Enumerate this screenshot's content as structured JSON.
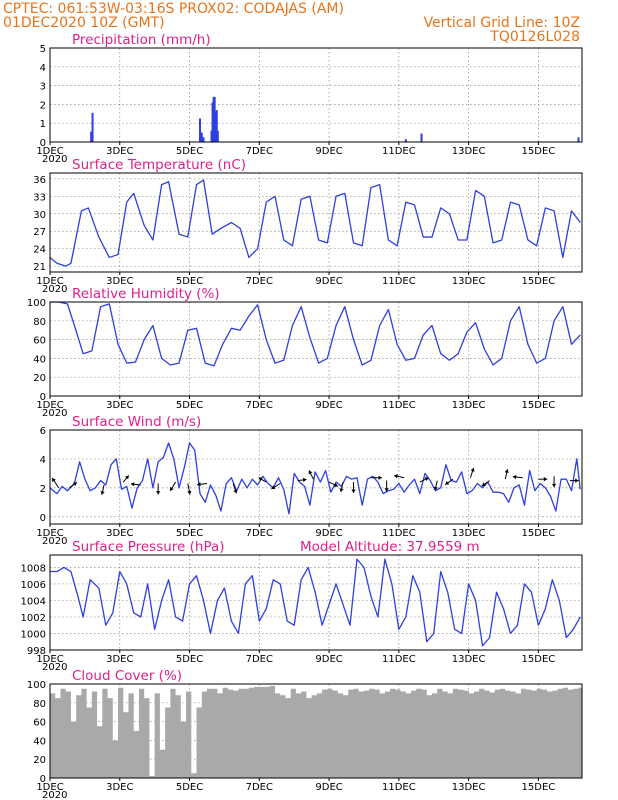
{
  "header": {
    "line1_left": "CPTEC:   061:53W-03:16S   PROX02: CODAJAS (AM)",
    "line2_left": "01DEC2020 10Z (GMT)",
    "line2_right": "Vertical Grid Line: 10Z",
    "line3_right": "TQ0126L028"
  },
  "colors": {
    "header": "#e8741a",
    "title": "#e0208a",
    "series": "#2f3fe0",
    "cloud": "#a9a9a9",
    "grid": "#888888"
  },
  "x_axis": {
    "ticks": [
      "1DEC",
      "3DEC",
      "5DEC",
      "7DEC",
      "9DEC",
      "11DEC",
      "13DEC",
      "15DEC"
    ],
    "tick_days": [
      0,
      2,
      4,
      6,
      8,
      10,
      12,
      14
    ],
    "year_label": "2020",
    "range_days": [
      0,
      15.25
    ]
  },
  "chart_data": [
    {
      "id": "precip",
      "type": "bar",
      "title": "Precipitation (mm/h)",
      "ylim": [
        0,
        5
      ],
      "yticks": [
        0,
        1,
        2,
        3,
        4,
        5
      ],
      "bars": [
        {
          "x": 1.18,
          "y": 0.55
        },
        {
          "x": 1.22,
          "y": 1.55
        },
        {
          "x": 4.3,
          "y": 1.25
        },
        {
          "x": 4.35,
          "y": 0.5
        },
        {
          "x": 4.4,
          "y": 0.25
        },
        {
          "x": 4.63,
          "y": 0.6
        },
        {
          "x": 4.66,
          "y": 2.1
        },
        {
          "x": 4.69,
          "y": 2.4
        },
        {
          "x": 4.72,
          "y": 2.4
        },
        {
          "x": 4.75,
          "y": 1.6
        },
        {
          "x": 4.78,
          "y": 1.7
        },
        {
          "x": 4.81,
          "y": 0.6
        },
        {
          "x": 10.2,
          "y": 0.15
        },
        {
          "x": 10.65,
          "y": 0.45
        },
        {
          "x": 15.15,
          "y": 0.25
        }
      ]
    },
    {
      "id": "temp",
      "type": "line",
      "title": "Surface Temperature (nC)",
      "ylim": [
        20,
        37
      ],
      "yticks": [
        21,
        24,
        27,
        30,
        33,
        36
      ],
      "x": [
        0,
        0.2,
        0.45,
        0.6,
        0.9,
        1.1,
        1.4,
        1.7,
        1.95,
        2.2,
        2.4,
        2.7,
        2.95,
        3.2,
        3.4,
        3.7,
        3.95,
        4.2,
        4.4,
        4.65,
        4.9,
        5.2,
        5.45,
        5.7,
        5.95,
        6.2,
        6.45,
        6.7,
        6.95,
        7.2,
        7.45,
        7.7,
        7.95,
        8.2,
        8.45,
        8.7,
        8.95,
        9.2,
        9.45,
        9.7,
        9.95,
        10.2,
        10.45,
        10.7,
        10.95,
        11.2,
        11.45,
        11.7,
        11.95,
        12.2,
        12.45,
        12.7,
        12.95,
        13.2,
        13.45,
        13.7,
        13.95,
        14.2,
        14.45,
        14.7,
        14.95,
        15.2
      ],
      "y": [
        22.5,
        21.5,
        21.0,
        21.5,
        30.5,
        31.0,
        26.0,
        22.5,
        23.0,
        32.0,
        33.5,
        28.0,
        25.5,
        35.0,
        35.5,
        26.5,
        26.0,
        35.0,
        35.8,
        26.5,
        27.5,
        28.5,
        27.5,
        22.5,
        24.0,
        32.0,
        33.0,
        25.5,
        24.5,
        32.5,
        33.0,
        25.5,
        25.0,
        33.0,
        33.5,
        25.0,
        24.5,
        34.5,
        35.0,
        25.5,
        24.5,
        32.0,
        31.5,
        26.0,
        26.0,
        31.0,
        30.0,
        25.5,
        25.5,
        34.0,
        33.0,
        25.0,
        25.5,
        32.0,
        31.5,
        25.5,
        24.5,
        31.0,
        30.5,
        22.5,
        30.5,
        28.5
      ]
    },
    {
      "id": "rh",
      "type": "line",
      "title": "Relative Humidity (%)",
      "ylim": [
        0,
        100
      ],
      "yticks": [
        0,
        20,
        40,
        60,
        80,
        100
      ],
      "x": [
        0,
        0.25,
        0.5,
        0.7,
        0.95,
        1.2,
        1.45,
        1.7,
        1.95,
        2.2,
        2.45,
        2.7,
        2.95,
        3.2,
        3.45,
        3.7,
        3.95,
        4.2,
        4.45,
        4.7,
        4.95,
        5.2,
        5.45,
        5.7,
        5.95,
        6.2,
        6.45,
        6.7,
        6.95,
        7.2,
        7.45,
        7.7,
        7.95,
        8.2,
        8.45,
        8.7,
        8.95,
        9.2,
        9.45,
        9.7,
        9.95,
        10.2,
        10.45,
        10.7,
        10.95,
        11.2,
        11.45,
        11.7,
        11.95,
        12.2,
        12.45,
        12.7,
        12.95,
        13.2,
        13.45,
        13.7,
        13.95,
        14.2,
        14.45,
        14.7,
        14.95,
        15.2
      ],
      "y": [
        100,
        100,
        98,
        75,
        45,
        48,
        95,
        98,
        55,
        35,
        36,
        60,
        75,
        40,
        33,
        35,
        70,
        72,
        35,
        32,
        55,
        72,
        70,
        85,
        97,
        60,
        35,
        38,
        75,
        95,
        62,
        35,
        40,
        75,
        95,
        60,
        33,
        38,
        75,
        92,
        55,
        38,
        40,
        65,
        75,
        45,
        38,
        45,
        68,
        78,
        50,
        33,
        40,
        80,
        95,
        55,
        35,
        40,
        80,
        95,
        55,
        65
      ]
    },
    {
      "id": "wind",
      "type": "line",
      "title": "Surface Wind (m/s)",
      "ylim": [
        -0.5,
        6
      ],
      "yticks": [
        0,
        2,
        4,
        6
      ],
      "x": [
        0,
        0.2,
        0.35,
        0.5,
        0.7,
        0.85,
        1.0,
        1.15,
        1.3,
        1.45,
        1.6,
        1.75,
        1.9,
        2.05,
        2.2,
        2.35,
        2.5,
        2.65,
        2.8,
        2.95,
        3.1,
        3.25,
        3.4,
        3.55,
        3.7,
        3.85,
        4.0,
        4.15,
        4.3,
        4.45,
        4.6,
        4.75,
        4.9,
        5.05,
        5.2,
        5.35,
        5.5,
        5.65,
        5.8,
        5.95,
        6.1,
        6.25,
        6.4,
        6.55,
        6.7,
        6.85,
        7.0,
        7.15,
        7.3,
        7.45,
        7.6,
        7.75,
        7.9,
        8.05,
        8.2,
        8.35,
        8.5,
        8.65,
        8.8,
        8.95,
        9.1,
        9.25,
        9.4,
        9.55,
        9.7,
        9.85,
        10.0,
        10.15,
        10.3,
        10.45,
        10.6,
        10.75,
        10.9,
        11.05,
        11.2,
        11.35,
        11.5,
        11.65,
        11.8,
        11.95,
        12.1,
        12.25,
        12.4,
        12.55,
        12.7,
        12.85,
        13.0,
        13.15,
        13.3,
        13.45,
        13.6,
        13.75,
        13.9,
        14.05,
        14.2,
        14.35,
        14.5,
        14.65,
        14.8,
        14.95,
        15.1,
        15.2
      ],
      "y": [
        2.0,
        1.6,
        2.1,
        1.8,
        2.3,
        3.8,
        2.6,
        1.8,
        2.0,
        2.5,
        2.2,
        3.6,
        4.0,
        1.9,
        2.1,
        0.6,
        2.0,
        2.5,
        4.0,
        2.0,
        3.8,
        4.1,
        5.1,
        4.0,
        2.0,
        3.4,
        5.1,
        4.6,
        1.6,
        1.0,
        2.2,
        1.5,
        0.4,
        2.3,
        2.7,
        1.8,
        2.6,
        2.0,
        2.6,
        2.2,
        2.8,
        2.3,
        2.0,
        2.7,
        1.9,
        0.2,
        3.0,
        2.4,
        2.1,
        0.8,
        3.1,
        2.4,
        3.2,
        1.7,
        2.4,
        2.1,
        2.8,
        2.6,
        2.7,
        0.8,
        2.6,
        2.8,
        2.4,
        1.6,
        1.8,
        1.9,
        2.3,
        1.7,
        2.2,
        2.6,
        1.6,
        3.0,
        2.5,
        1.8,
        2.0,
        3.6,
        2.5,
        2.4,
        3.1,
        1.6,
        1.8,
        2.3,
        2.0,
        2.4,
        1.7,
        1.7,
        1.6,
        1.0,
        2.0,
        2.2,
        0.8,
        3.2,
        1.8,
        2.3,
        2.0,
        1.4,
        0.4,
        2.6,
        2.6,
        1.8,
        4.0,
        1.9
      ],
      "vectors": [
        {
          "x": 0.25,
          "y": 2.0,
          "u": -0.6,
          "v": 0.9
        },
        {
          "x": 0.55,
          "y": 2.0,
          "u": 0.7,
          "v": 0.5
        },
        {
          "x": 1.55,
          "y": 2.2,
          "u": -0.2,
          "v": -0.9
        },
        {
          "x": 2.1,
          "y": 2.4,
          "u": 0.5,
          "v": 0.6
        },
        {
          "x": 2.6,
          "y": 2.2,
          "u": -0.9,
          "v": 0.1
        },
        {
          "x": 3.1,
          "y": 2.3,
          "u": 0.0,
          "v": -1.0
        },
        {
          "x": 3.6,
          "y": 2.4,
          "u": -0.5,
          "v": -0.8
        },
        {
          "x": 3.95,
          "y": 2.3,
          "u": 0.2,
          "v": -1.0
        },
        {
          "x": 4.5,
          "y": 2.3,
          "u": -0.9,
          "v": -0.1
        },
        {
          "x": 5.25,
          "y": 2.3,
          "u": 0.3,
          "v": -0.9
        },
        {
          "x": 6.2,
          "y": 2.4,
          "u": -0.7,
          "v": 0.4
        },
        {
          "x": 6.6,
          "y": 2.3,
          "u": -0.8,
          "v": -0.5
        },
        {
          "x": 7.1,
          "y": 2.5,
          "u": 0.8,
          "v": 0.1
        },
        {
          "x": 7.55,
          "y": 2.6,
          "u": -0.4,
          "v": 0.8
        },
        {
          "x": 8.0,
          "y": 2.4,
          "u": 0.8,
          "v": -0.4
        },
        {
          "x": 8.4,
          "y": 2.4,
          "u": -0.2,
          "v": -0.9
        },
        {
          "x": 8.7,
          "y": 2.4,
          "u": 0.0,
          "v": -1.0
        },
        {
          "x": 9.2,
          "y": 2.7,
          "u": 1.0,
          "v": 0.0
        },
        {
          "x": 9.65,
          "y": 2.5,
          "u": 0.0,
          "v": -1.0
        },
        {
          "x": 10.15,
          "y": 2.7,
          "u": -0.9,
          "v": 0.2
        },
        {
          "x": 10.6,
          "y": 2.4,
          "u": 0.8,
          "v": 0.4
        },
        {
          "x": 11.1,
          "y": 2.5,
          "u": -0.2,
          "v": -0.9
        },
        {
          "x": 11.55,
          "y": 2.6,
          "u": -0.7,
          "v": -0.5
        },
        {
          "x": 12.05,
          "y": 2.7,
          "u": 0.3,
          "v": 0.9
        },
        {
          "x": 12.6,
          "y": 2.5,
          "u": -0.7,
          "v": -0.5
        },
        {
          "x": 13.05,
          "y": 2.6,
          "u": 0.2,
          "v": 0.9
        },
        {
          "x": 13.55,
          "y": 2.7,
          "u": -0.9,
          "v": 0.1
        },
        {
          "x": 14.0,
          "y": 2.6,
          "u": 0.8,
          "v": 0.0
        },
        {
          "x": 14.45,
          "y": 2.8,
          "u": 0.0,
          "v": -1.0
        },
        {
          "x": 14.9,
          "y": 2.5,
          "u": 0.8,
          "v": 0.0
        }
      ]
    },
    {
      "id": "press",
      "type": "line",
      "title": "Surface Pressure (hPa)",
      "title_extra": "Model Altitude: 37.9559 m",
      "ylim": [
        998,
        1009.5
      ],
      "yticks": [
        998,
        1000,
        1002,
        1004,
        1006,
        1008
      ],
      "x": [
        0,
        0.2,
        0.4,
        0.6,
        0.8,
        0.95,
        1.15,
        1.4,
        1.6,
        1.8,
        2.0,
        2.2,
        2.4,
        2.6,
        2.8,
        3.0,
        3.2,
        3.4,
        3.6,
        3.8,
        4.0,
        4.2,
        4.4,
        4.6,
        4.8,
        5.0,
        5.2,
        5.4,
        5.6,
        5.8,
        6.0,
        6.2,
        6.4,
        6.6,
        6.8,
        7.0,
        7.2,
        7.4,
        7.6,
        7.8,
        8.0,
        8.2,
        8.4,
        8.6,
        8.8,
        9.0,
        9.2,
        9.4,
        9.6,
        9.8,
        10.0,
        10.2,
        10.4,
        10.6,
        10.8,
        11.0,
        11.2,
        11.4,
        11.6,
        11.8,
        12.0,
        12.2,
        12.4,
        12.6,
        12.8,
        13.0,
        13.2,
        13.4,
        13.6,
        13.8,
        14.0,
        14.2,
        14.4,
        14.6,
        14.8,
        15.0,
        15.2
      ],
      "y": [
        1007.5,
        1007.5,
        1008.0,
        1007.5,
        1004.5,
        1002.0,
        1006.5,
        1005.5,
        1001.0,
        1002.5,
        1007.5,
        1006.0,
        1002.5,
        1002.0,
        1006.0,
        1000.5,
        1004.0,
        1006.5,
        1002.0,
        1001.5,
        1006.0,
        1007.0,
        1004.0,
        1000.0,
        1004.0,
        1005.5,
        1001.5,
        1000.0,
        1006.0,
        1007.0,
        1001.5,
        1003.0,
        1006.5,
        1006.0,
        1001.5,
        1001.0,
        1006.5,
        1008.0,
        1005.0,
        1001.0,
        1003.5,
        1006.0,
        1003.5,
        1001.0,
        1009.0,
        1008.0,
        1004.5,
        1002.0,
        1009.0,
        1006.0,
        1000.5,
        1002.0,
        1007.0,
        1005.0,
        999.0,
        1000.0,
        1007.5,
        1005.0,
        1000.5,
        1000.0,
        1006.0,
        1004.0,
        998.5,
        999.5,
        1005.0,
        1003.0,
        1000.0,
        1001.0,
        1006.0,
        1005.0,
        1001.0,
        1003.0,
        1006.5,
        1004.0,
        999.5,
        1000.5,
        1002.0
      ]
    },
    {
      "id": "cloud",
      "type": "area",
      "title": "Cloud Cover (%)",
      "ylim": [
        0,
        100
      ],
      "yticks": [
        0,
        20,
        40,
        60,
        80,
        100
      ],
      "x": [
        0,
        0.15,
        0.3,
        0.45,
        0.6,
        0.75,
        0.9,
        1.05,
        1.2,
        1.35,
        1.5,
        1.65,
        1.8,
        1.95,
        2.1,
        2.25,
        2.4,
        2.55,
        2.7,
        2.85,
        3.0,
        3.15,
        3.3,
        3.45,
        3.6,
        3.75,
        3.9,
        4.05,
        4.2,
        4.35,
        4.5,
        4.65,
        4.8,
        4.95,
        5.1,
        5.25,
        5.4,
        5.55,
        5.7,
        5.85,
        6.0,
        6.15,
        6.3,
        6.45,
        6.6,
        6.75,
        6.9,
        7.05,
        7.2,
        7.35,
        7.5,
        7.65,
        7.8,
        7.95,
        8.1,
        8.25,
        8.4,
        8.55,
        8.7,
        8.85,
        9.0,
        9.15,
        9.3,
        9.45,
        9.6,
        9.75,
        9.9,
        10.05,
        10.2,
        10.35,
        10.5,
        10.65,
        10.8,
        10.95,
        11.1,
        11.25,
        11.4,
        11.55,
        11.7,
        11.85,
        12.0,
        12.15,
        12.3,
        12.45,
        12.6,
        12.75,
        12.9,
        13.05,
        13.2,
        13.35,
        13.5,
        13.65,
        13.8,
        13.95,
        14.1,
        14.25,
        14.4,
        14.55,
        14.7,
        14.85,
        15.0,
        15.15,
        15.25
      ],
      "y": [
        90,
        85,
        95,
        92,
        60,
        88,
        95,
        75,
        92,
        55,
        95,
        85,
        40,
        96,
        70,
        90,
        50,
        95,
        85,
        2,
        90,
        30,
        75,
        95,
        88,
        60,
        92,
        5,
        75,
        92,
        95,
        95,
        90,
        96,
        94,
        93,
        95,
        95,
        96,
        97,
        97,
        97,
        98,
        90,
        88,
        85,
        95,
        90,
        92,
        85,
        88,
        90,
        94,
        95,
        93,
        90,
        88,
        94,
        95,
        92,
        93,
        95,
        94,
        90,
        92,
        95,
        94,
        92,
        90,
        93,
        95,
        94,
        88,
        90,
        95,
        92,
        90,
        95,
        94,
        93,
        90,
        92,
        95,
        93,
        91,
        94,
        95,
        93,
        92,
        90,
        95,
        94,
        93,
        95,
        94,
        92,
        93,
        95,
        96,
        94,
        95,
        96,
        95
      ]
    }
  ]
}
